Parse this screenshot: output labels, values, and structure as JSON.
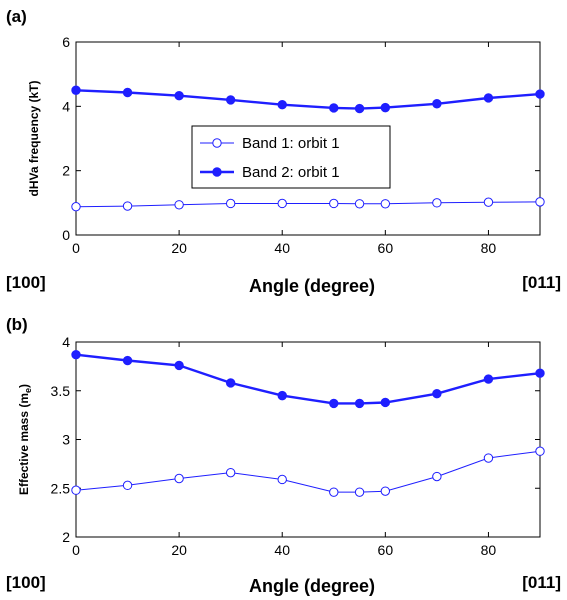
{
  "colors": {
    "series": "#1f1fff",
    "axis": "#000000",
    "background": "#ffffff"
  },
  "chart_data": [
    {
      "panel_label": "(a)",
      "type": "line",
      "xlabel": "Angle (degree)",
      "ylabel": "dHVa frequency (kT)",
      "xlim": [
        0,
        90
      ],
      "ylim": [
        0,
        6
      ],
      "x_ticks": [
        0,
        20,
        40,
        60,
        80
      ],
      "y_ticks": [
        0,
        2,
        4,
        6
      ],
      "x_end_labels": {
        "left": "[100]",
        "right": "[011]"
      },
      "legend": "inside-center-left",
      "grid": false,
      "series": [
        {
          "name": "Band 1: orbit 1",
          "marker": "open-circle",
          "line_weight": "thin",
          "x": [
            0,
            10,
            20,
            30,
            40,
            50,
            55,
            60,
            70,
            80,
            90
          ],
          "y": [
            0.88,
            0.9,
            0.94,
            0.98,
            0.98,
            0.98,
            0.97,
            0.97,
            1.0,
            1.02,
            1.03
          ]
        },
        {
          "name": "Band 2: orbit 1",
          "marker": "filled-circle",
          "line_weight": "thick",
          "x": [
            0,
            10,
            20,
            30,
            40,
            50,
            55,
            60,
            70,
            80,
            90
          ],
          "y": [
            4.5,
            4.43,
            4.33,
            4.2,
            4.05,
            3.95,
            3.93,
            3.96,
            4.08,
            4.26,
            4.38
          ]
        }
      ]
    },
    {
      "panel_label": "(b)",
      "type": "line",
      "xlabel": "Angle  (degree)",
      "ylabel": "Effective mass (m",
      "ylabel_sub": "e",
      "ylabel_close": ")",
      "xlim": [
        0,
        90
      ],
      "ylim": [
        2,
        4
      ],
      "x_ticks": [
        0,
        20,
        40,
        60,
        80
      ],
      "y_ticks": [
        2,
        2.5,
        3,
        3.5,
        4
      ],
      "y_tick_labels": [
        "2",
        "2.5",
        "3",
        "3.5",
        "4"
      ],
      "x_end_labels": {
        "left": "[100]",
        "right": "[011]"
      },
      "grid": false,
      "series": [
        {
          "marker": "open-circle",
          "line_weight": "thin",
          "x": [
            0,
            10,
            20,
            30,
            40,
            50,
            55,
            60,
            70,
            80,
            90
          ],
          "y": [
            2.48,
            2.53,
            2.6,
            2.66,
            2.59,
            2.46,
            2.46,
            2.47,
            2.62,
            2.81,
            2.88
          ]
        },
        {
          "marker": "filled-circle",
          "line_weight": "thick",
          "x": [
            0,
            10,
            20,
            30,
            40,
            50,
            55,
            60,
            70,
            80,
            90
          ],
          "y": [
            3.87,
            3.81,
            3.76,
            3.58,
            3.45,
            3.37,
            3.37,
            3.38,
            3.47,
            3.62,
            3.68
          ]
        }
      ]
    }
  ]
}
